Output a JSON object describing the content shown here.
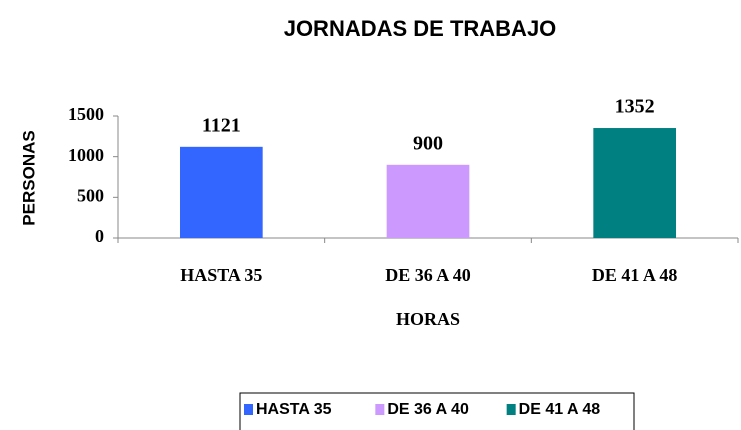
{
  "chart_data": {
    "type": "bar",
    "title": "JORNADAS DE TRABAJO",
    "y_label": "PERSONAS",
    "x_label": "HORAS",
    "categories": [
      "HASTA 35",
      "DE 36 A 40",
      "DE 41 A 48"
    ],
    "values": [
      1121,
      900,
      1352
    ],
    "colors": [
      "#3366ff",
      "#cc99ff",
      "#008080"
    ],
    "ylim": [
      0,
      1500
    ],
    "yticks": [
      0,
      500,
      1000,
      1500
    ],
    "grid": false,
    "legend": "bottom"
  }
}
